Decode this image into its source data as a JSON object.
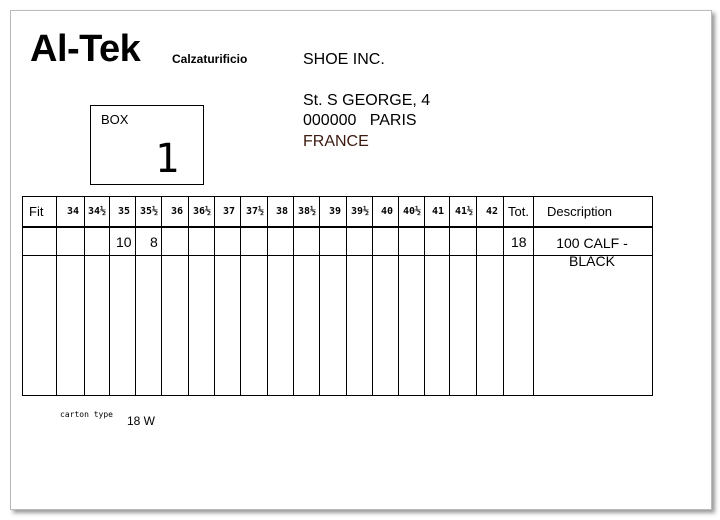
{
  "company": {
    "logo": "Al-Tek",
    "subtitle": "Calzaturificio"
  },
  "recipient": {
    "name": "SHOE INC.",
    "street": "St. S GEORGE, 4",
    "city": "000000   PARIS",
    "country": "FRANCE",
    "country_color": "#3c1a10"
  },
  "box": {
    "label": "BOX",
    "number": "1"
  },
  "table": {
    "fit_header": "Fit",
    "sizes": [
      "34",
      "34½",
      "35",
      "35½",
      "36",
      "36½",
      "37",
      "37½",
      "38",
      "38½",
      "39",
      "39½",
      "40",
      "40½",
      "41",
      "41½",
      "42"
    ],
    "total_header": "Tot.",
    "description_header": "Description",
    "rows": [
      {
        "fit": "",
        "quantities": {
          "35": "10",
          "35½": "8"
        },
        "total": "18",
        "description": "100 CALF - BLACK"
      }
    ]
  },
  "carton": {
    "label": "carton type",
    "value": "18 W"
  }
}
